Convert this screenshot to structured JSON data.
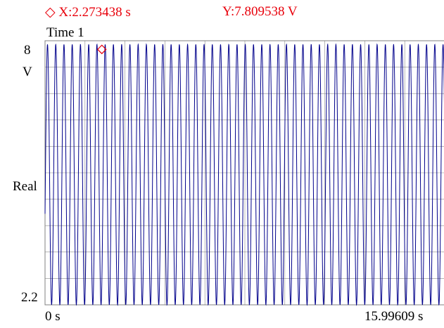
{
  "cursor": {
    "marker_glyph": "◇",
    "x_label": "X:2.273438  s",
    "y_label": "Y:7.809538  V",
    "color": "#e8000b"
  },
  "chart_data": {
    "type": "line",
    "title": "Time 1",
    "ylabel": "Real",
    "yunit": "V",
    "y_tick_top": "8",
    "y_tick_bottom": "2.2",
    "x_tick_start": "0  s",
    "x_tick_end": "15.99609   s",
    "xlim": [
      0,
      15.99609
    ],
    "ylim": [
      2.2,
      8
    ],
    "grid": true,
    "series": [
      {
        "color": "#00008b",
        "waveform": "sine",
        "amplitude": 2.86,
        "offset": 5.06,
        "cycles_in_window": 48.5,
        "start_value": 4.2
      }
    ],
    "cursor_point": {
      "x": 2.273438,
      "y": 7.809538
    }
  }
}
